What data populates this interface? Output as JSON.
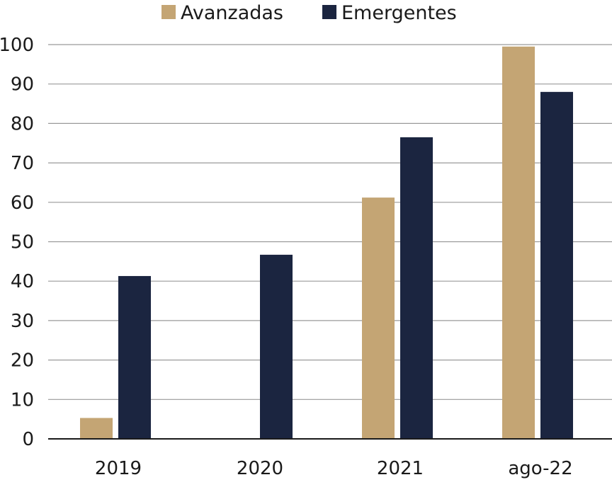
{
  "chart_data": {
    "type": "bar",
    "title": "",
    "xlabel": "",
    "ylabel": "",
    "categories": [
      "2019",
      "2020",
      "2021",
      "ago-22"
    ],
    "series": [
      {
        "name": "Avanzadas",
        "color": "#c4a574",
        "values": [
          5.3,
          null,
          61.2,
          99.5
        ]
      },
      {
        "name": "Emergentes",
        "color": "#1b2540",
        "values": [
          41.3,
          46.7,
          76.5,
          88.0
        ]
      }
    ],
    "ylim": [
      0,
      100
    ],
    "yticks": [
      0,
      10,
      20,
      30,
      40,
      50,
      60,
      70,
      80,
      90,
      100
    ],
    "grid": true,
    "legend_position": "top"
  }
}
